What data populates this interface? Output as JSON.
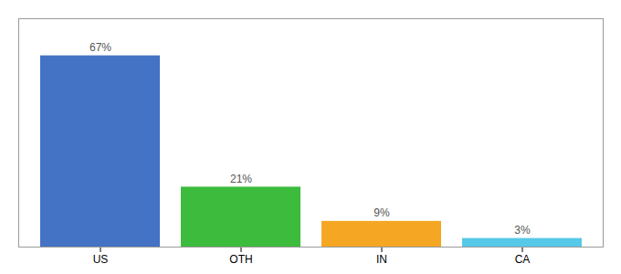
{
  "chart_data": {
    "type": "bar",
    "categories": [
      "US",
      "OTH",
      "IN",
      "CA"
    ],
    "values": [
      67,
      21,
      9,
      3
    ],
    "value_labels": [
      "67%",
      "21%",
      "9%",
      "3%"
    ],
    "data_labels": true,
    "colors": [
      "#4472c4",
      "#3dbb3d",
      "#f5a623",
      "#56c8e8"
    ],
    "ylim": [
      0,
      80
    ],
    "grid": false,
    "tick_labels": "x"
  }
}
